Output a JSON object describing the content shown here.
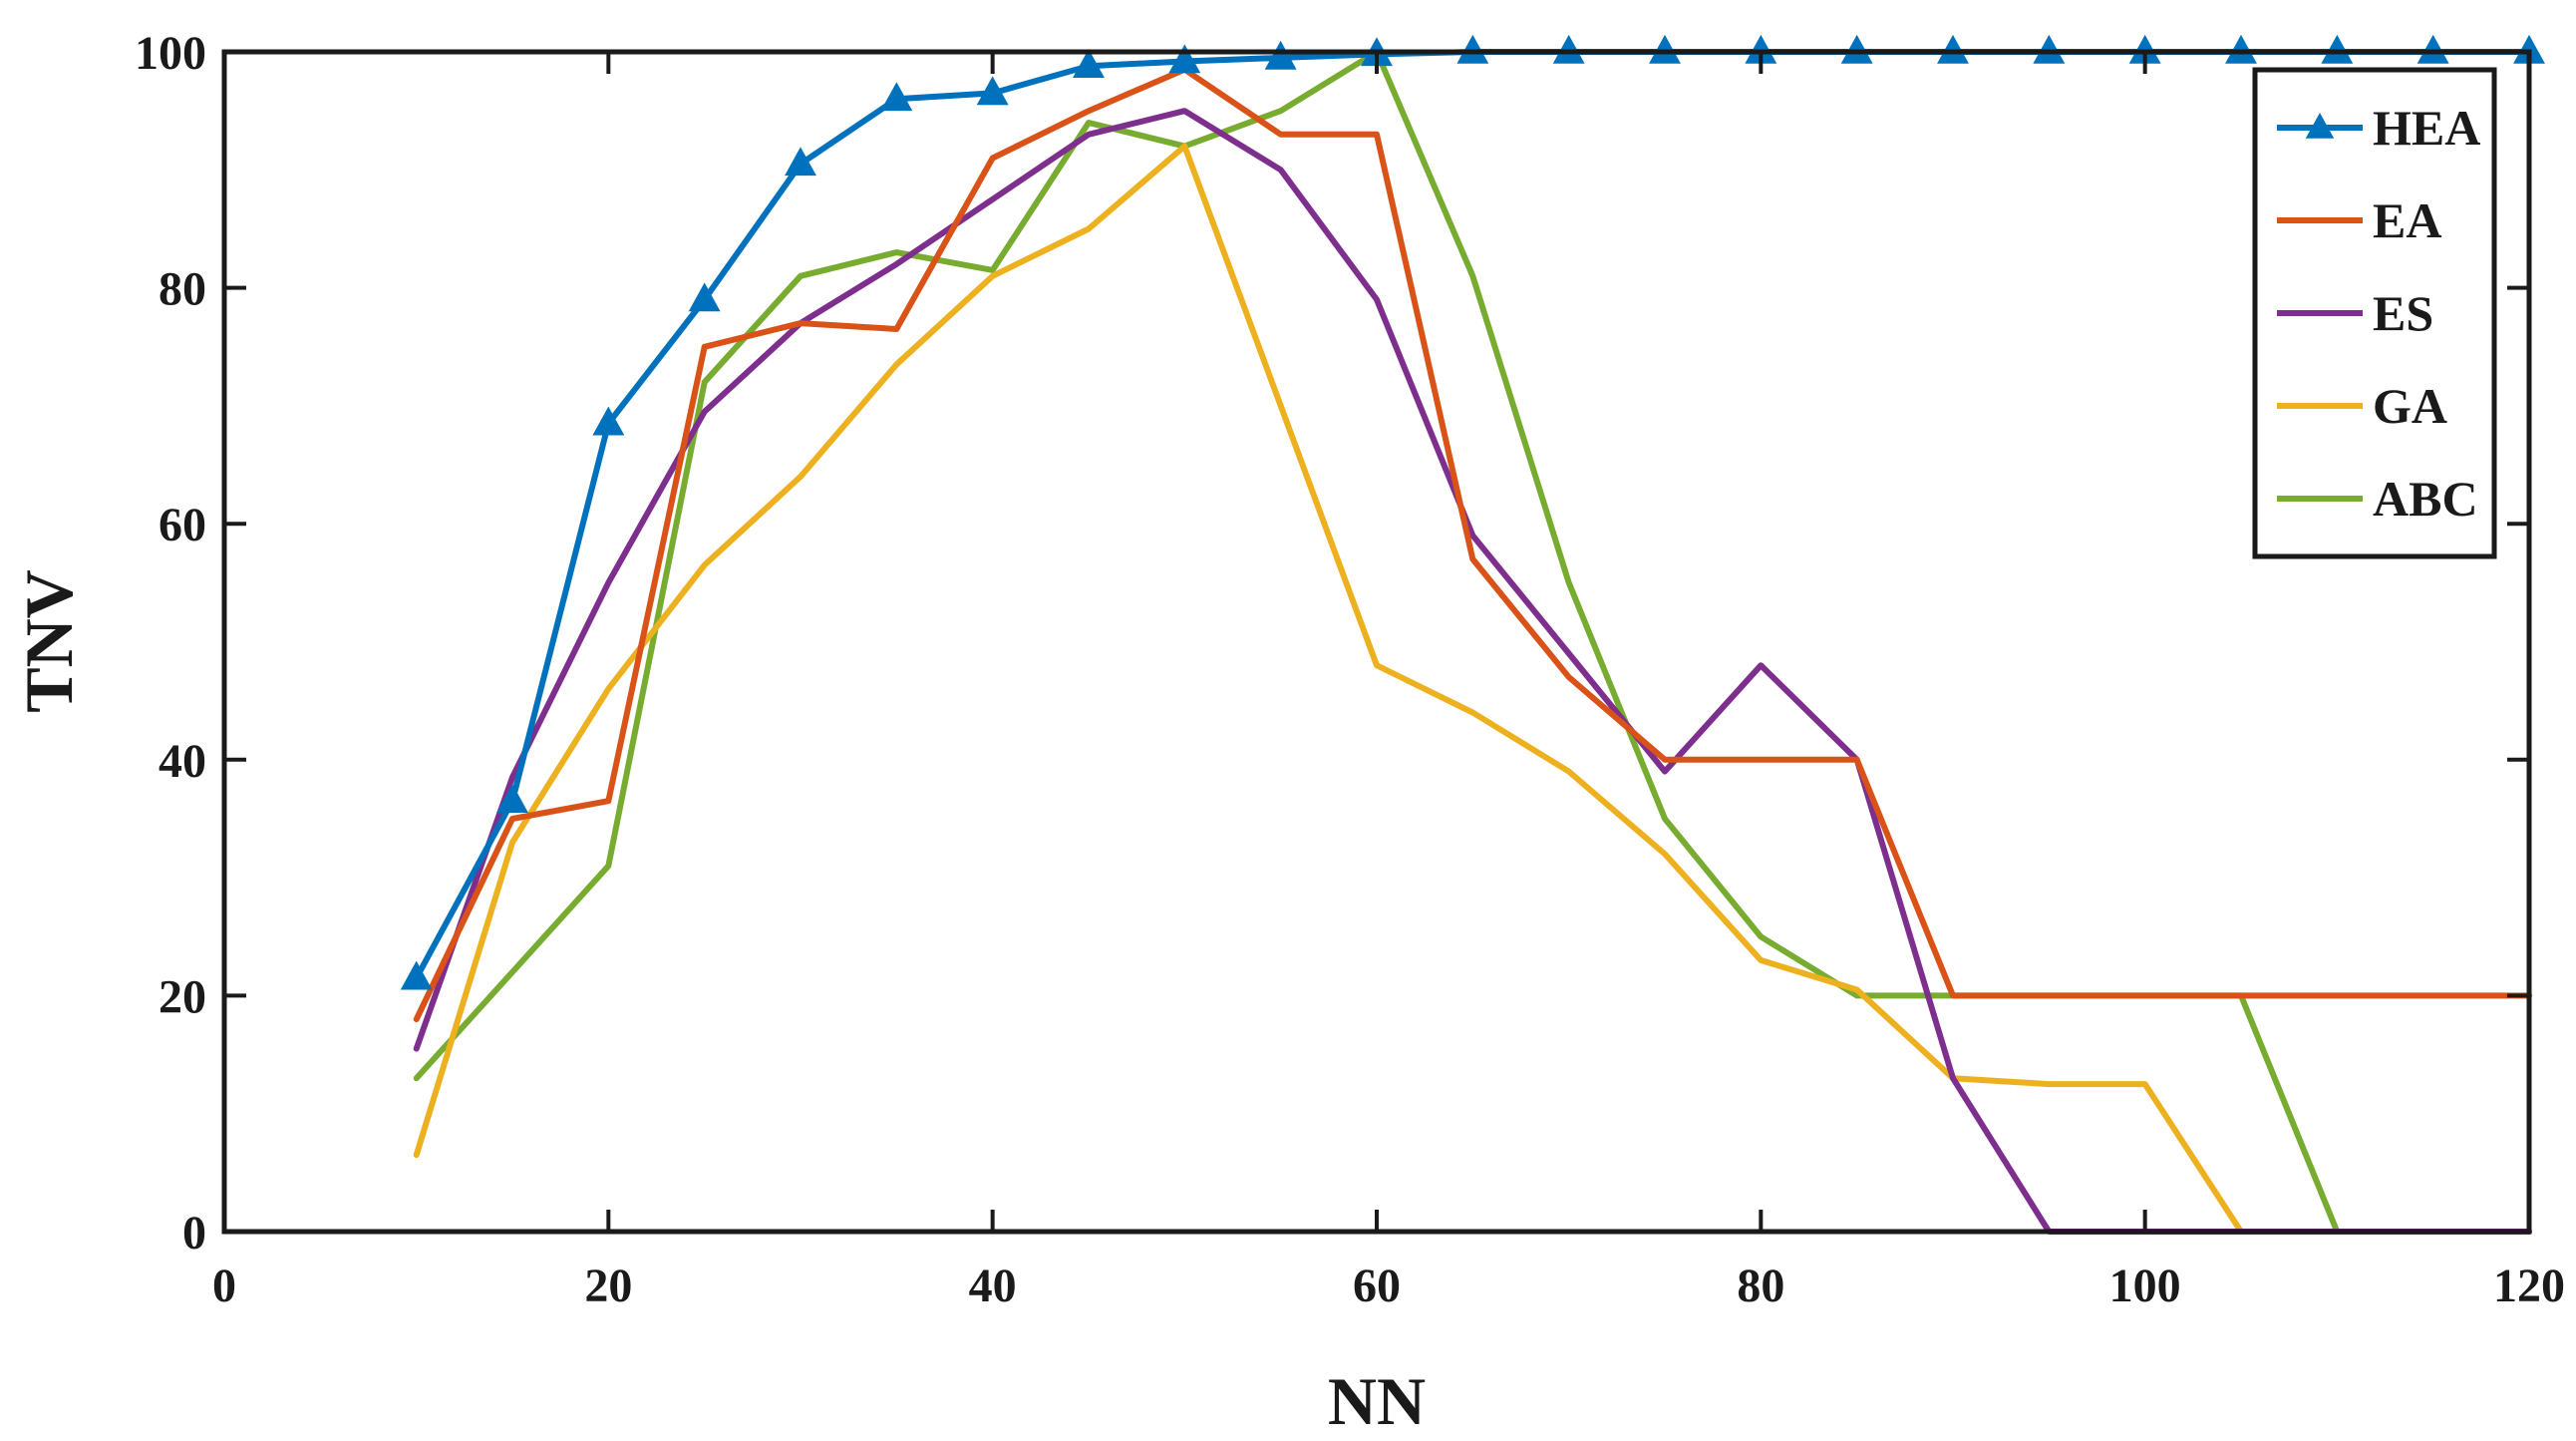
{
  "chart_data": {
    "type": "line",
    "title": "",
    "xlabel": "NN",
    "ylabel": "TNV",
    "xlim": [
      0,
      120
    ],
    "ylim": [
      0,
      100
    ],
    "xticks": [
      0,
      20,
      40,
      60,
      80,
      100,
      120
    ],
    "yticks": [
      0,
      20,
      40,
      60,
      80,
      100
    ],
    "grid": false,
    "legend_position": "top-right",
    "x": [
      10,
      15,
      20,
      25,
      30,
      35,
      40,
      45,
      50,
      55,
      60,
      65,
      70,
      75,
      80,
      85,
      90,
      95,
      100,
      105,
      110,
      115,
      120
    ],
    "series": [
      {
        "name": "HEA",
        "color": "#0072BD",
        "marker": "triangle",
        "values": [
          21.5,
          36.5,
          68.5,
          79,
          90.5,
          96,
          96.5,
          98.8,
          99.2,
          99.5,
          99.8,
          100,
          100,
          100,
          100,
          100,
          100,
          100,
          100,
          100,
          100,
          100,
          100
        ]
      },
      {
        "name": "EA",
        "color": "#D95319",
        "marker": "none",
        "values": [
          18,
          35,
          36.5,
          75,
          77,
          76.5,
          91,
          95,
          98.5,
          93,
          93,
          57,
          47,
          40,
          40,
          40,
          20,
          20,
          20,
          20,
          20,
          20,
          20
        ]
      },
      {
        "name": "ES",
        "color": "#7E2F8E",
        "marker": "none",
        "values": [
          15.5,
          38.5,
          55,
          69.5,
          77,
          82,
          87.5,
          93,
          95,
          90,
          79,
          59,
          49,
          39,
          48,
          40,
          13,
          0,
          0,
          0,
          0,
          0,
          0
        ]
      },
      {
        "name": "GA",
        "color": "#EDB120",
        "marker": "none",
        "values": [
          6.5,
          33,
          46,
          56.5,
          64,
          73.5,
          81,
          85,
          92,
          70,
          48,
          44,
          39,
          32,
          23,
          20.5,
          13,
          12.5,
          12.5,
          0,
          0,
          0,
          0
        ]
      },
      {
        "name": "ABC",
        "color": "#77AC30",
        "marker": "none",
        "values": [
          13,
          22,
          31,
          72,
          81,
          83,
          81.5,
          94,
          92,
          95,
          100,
          81,
          55,
          35,
          25,
          20,
          20,
          20,
          20,
          20,
          0,
          0,
          0
        ]
      }
    ]
  }
}
